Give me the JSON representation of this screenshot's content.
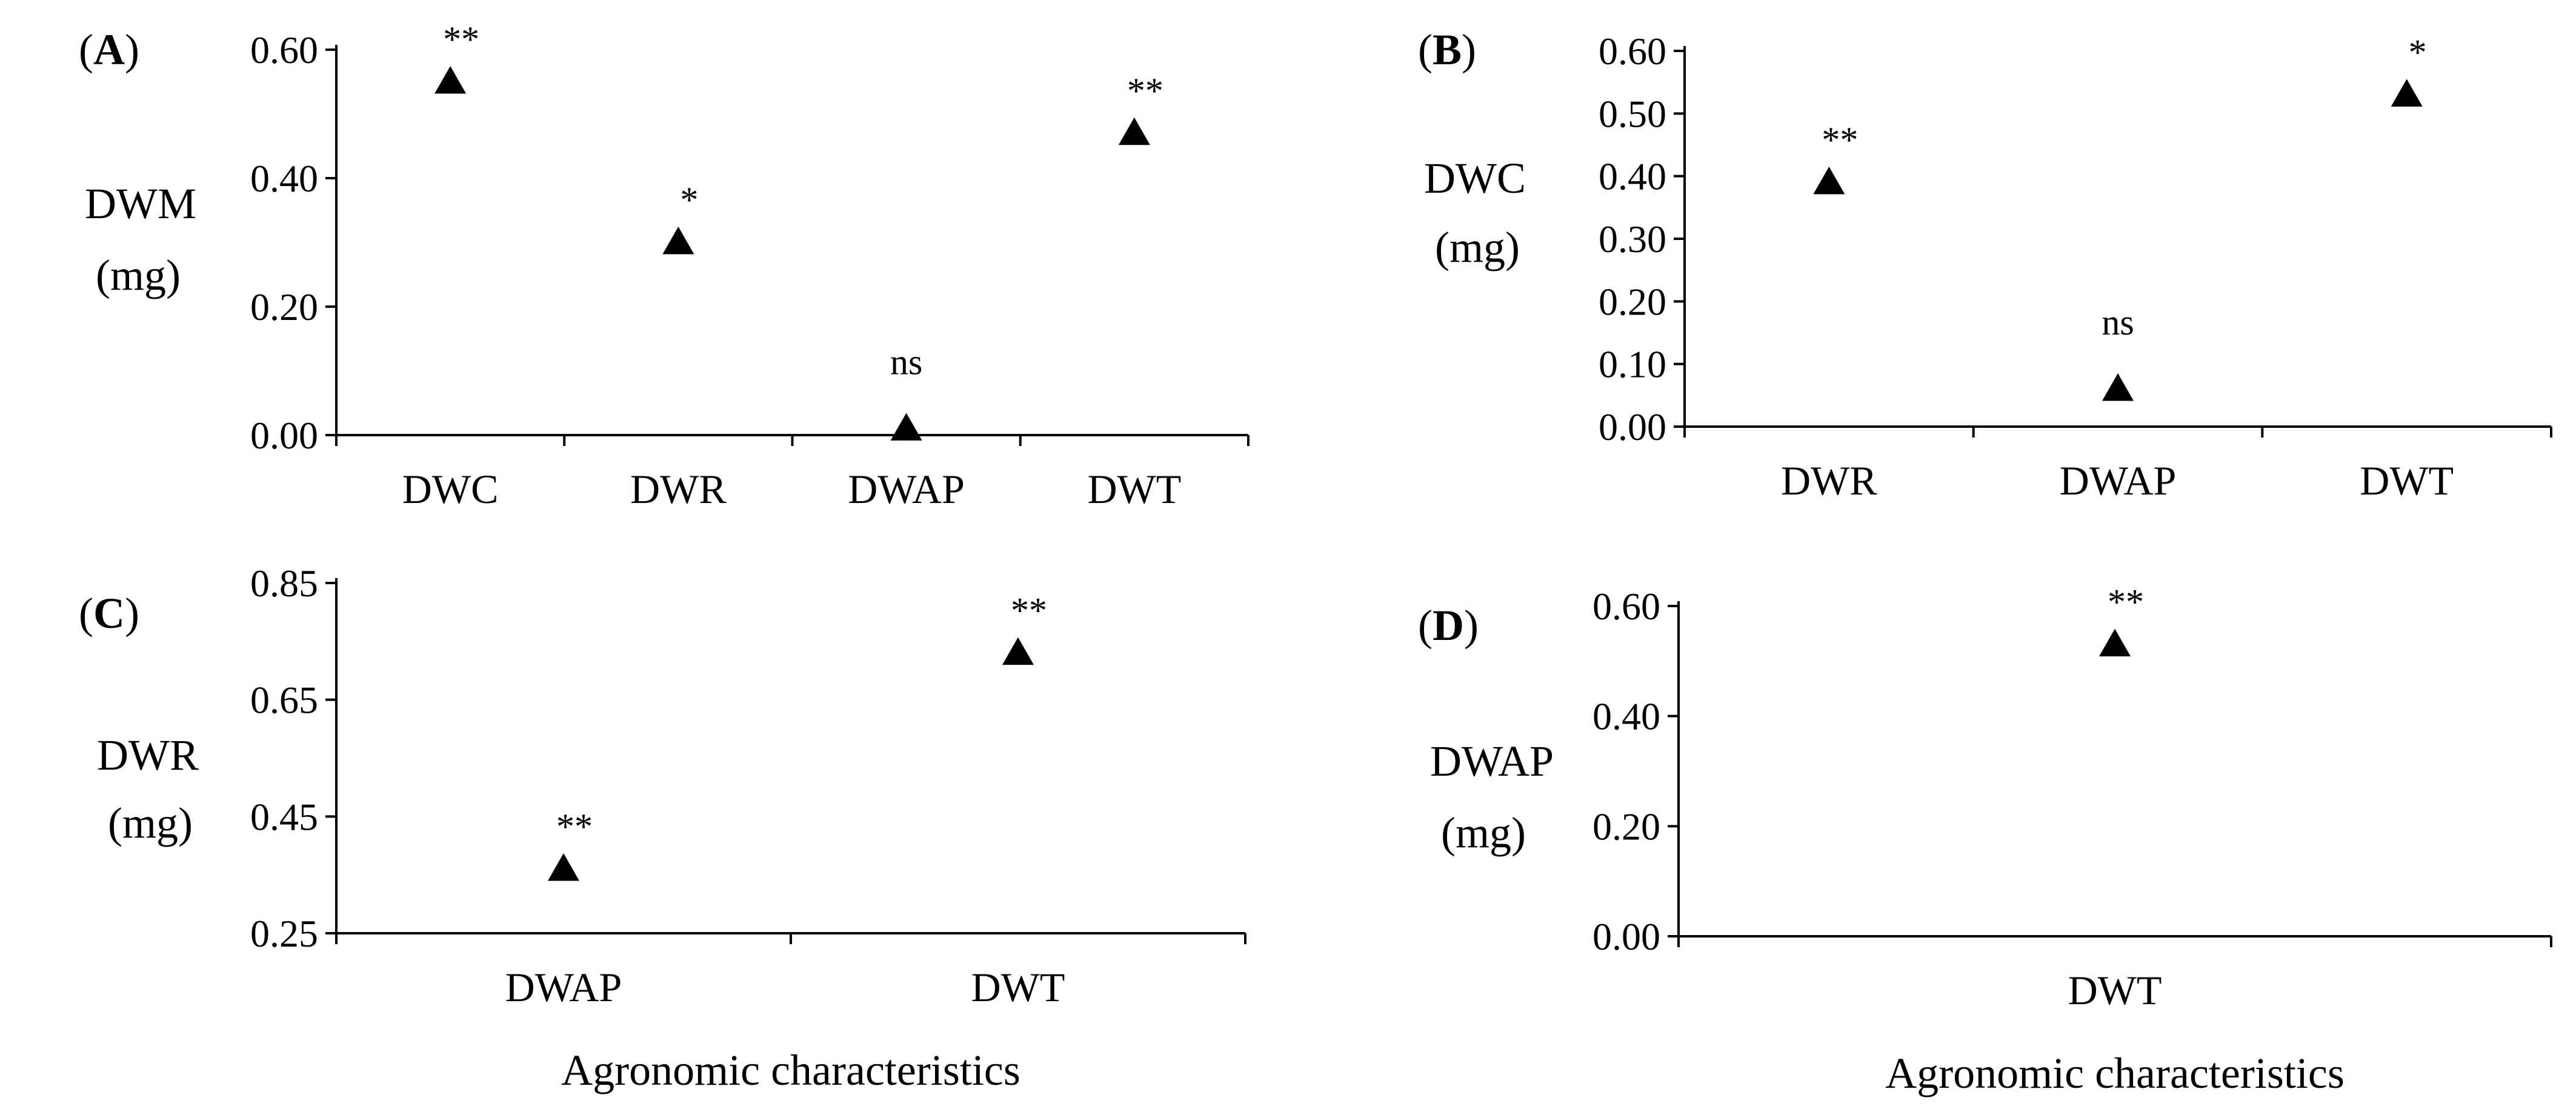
{
  "figure": {
    "xlabel_bottom": "Agronomic characteristics"
  },
  "chart_data": [
    {
      "type": "scatter",
      "panel": "A",
      "ylabel": [
        "DWM",
        "(mg)"
      ],
      "xlabel": "",
      "categories": [
        "DWC",
        "DWR",
        "DWAP",
        "DWT"
      ],
      "values": [
        0.55,
        0.3,
        0.01,
        0.47
      ],
      "significance": [
        "**",
        "*",
        "ns",
        "**"
      ],
      "yticks": [
        "0.00",
        "0.20",
        "0.40",
        "0.60"
      ],
      "ylim": [
        0,
        0.6
      ],
      "grid": false,
      "marker": "triangle"
    },
    {
      "type": "scatter",
      "panel": "B",
      "ylabel": [
        "DWC",
        "(mg)"
      ],
      "xlabel": "",
      "categories": [
        "DWR",
        "DWAP",
        "DWT"
      ],
      "values": [
        0.39,
        0.06,
        0.53
      ],
      "significance": [
        "**",
        "ns",
        "*"
      ],
      "yticks": [
        "0.00",
        "0.10",
        "0.20",
        "0.30",
        "0.40",
        "0.50",
        "0.60"
      ],
      "ylim": [
        0,
        0.6
      ],
      "grid": false,
      "marker": "triangle"
    },
    {
      "type": "scatter",
      "panel": "C",
      "ylabel": [
        "DWR",
        "(mg)"
      ],
      "xlabel": "Agronomic characteristics",
      "categories": [
        "DWAP",
        "DWT"
      ],
      "values": [
        0.36,
        0.73
      ],
      "significance": [
        "**",
        "**"
      ],
      "yticks": [
        "0.25",
        "0.45",
        "0.65",
        "0.85"
      ],
      "ylim": [
        0.25,
        0.85
      ],
      "grid": false,
      "marker": "triangle"
    },
    {
      "type": "scatter",
      "panel": "D",
      "ylabel": [
        "DWAP",
        "(mg)"
      ],
      "xlabel": "Agronomic characteristics",
      "categories": [
        "DWT"
      ],
      "values": [
        0.53
      ],
      "significance": [
        "**"
      ],
      "yticks": [
        "0.00",
        "0.20",
        "0.40",
        "0.60"
      ],
      "ylim": [
        0,
        0.6
      ],
      "grid": false,
      "marker": "triangle"
    }
  ]
}
